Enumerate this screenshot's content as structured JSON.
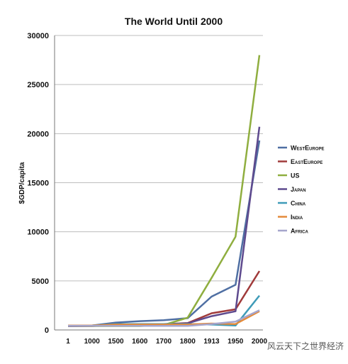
{
  "chart_data": {
    "type": "line",
    "title": "The World Until 2000",
    "xlabel": "",
    "ylabel": "$GDP/capita",
    "categories": [
      "1",
      "1000",
      "1500",
      "1600",
      "1700",
      "1800",
      "1913",
      "1950",
      "2000"
    ],
    "ylim": [
      0,
      30000
    ],
    "yticks": [
      0,
      5000,
      10000,
      15000,
      20000,
      25000,
      30000
    ],
    "grid": true,
    "legend_position": "right",
    "series": [
      {
        "name": "WestEurope",
        "color": "#4f6fa3",
        "values": [
          450,
          450,
          750,
          900,
          1000,
          1200,
          3400,
          4600,
          19300
        ]
      },
      {
        "name": "EastEurope",
        "color": "#a03a3a",
        "values": [
          400,
          400,
          500,
          550,
          600,
          700,
          1700,
          2100,
          6000
        ]
      },
      {
        "name": "US",
        "color": "#8fae3f",
        "values": [
          400,
          400,
          400,
          400,
          500,
          1250,
          5300,
          9500,
          28000
        ]
      },
      {
        "name": "Japan",
        "color": "#5e4a8e",
        "values": [
          400,
          420,
          500,
          520,
          570,
          670,
          1400,
          1900,
          20700
        ]
      },
      {
        "name": "China",
        "color": "#3e9bb8",
        "values": [
          450,
          450,
          600,
          600,
          600,
          600,
          550,
          450,
          3500
        ]
      },
      {
        "name": "India",
        "color": "#e48a3a",
        "values": [
          450,
          450,
          550,
          550,
          550,
          550,
          650,
          600,
          1900
        ]
      },
      {
        "name": "Africa",
        "color": "#a5a5cc",
        "values": [
          430,
          430,
          420,
          420,
          420,
          420,
          600,
          850,
          2000
        ]
      }
    ]
  },
  "watermark": "风云天下之世界经济"
}
